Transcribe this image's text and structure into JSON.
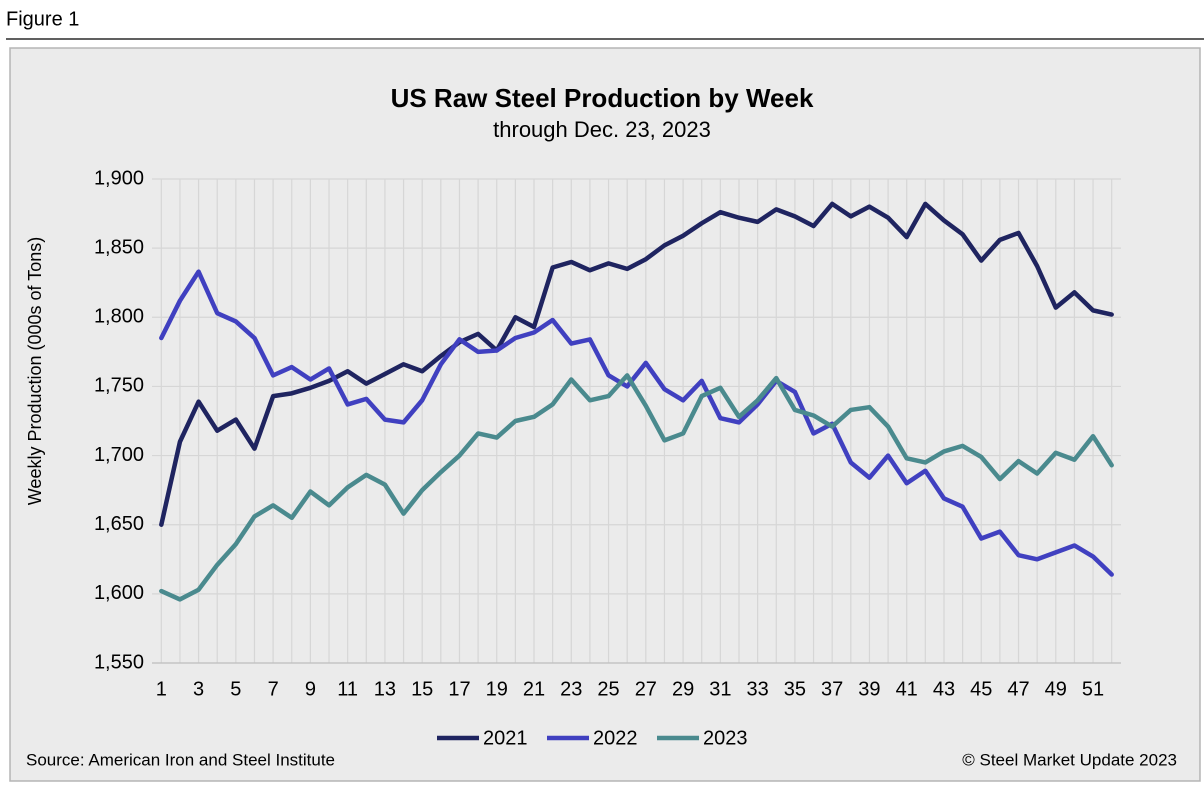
{
  "figure_label": "Figure 1",
  "chart_data": {
    "type": "line",
    "title": "US Raw Steel Production by Week",
    "subtitle": "through Dec. 23, 2023",
    "y_label": "Weekly Production (000s of Tons)",
    "source": "Source: American Iron and Steel Institute",
    "credit": "© Steel Market Update 2023",
    "categories": [
      "1",
      null,
      "3",
      null,
      "5",
      null,
      "7",
      null,
      "9",
      null,
      "11",
      null,
      "13",
      null,
      "15",
      null,
      "17",
      null,
      "19",
      null,
      "21",
      null,
      "23",
      null,
      "25",
      null,
      "27",
      null,
      "29",
      null,
      "31",
      null,
      "33",
      null,
      "35",
      null,
      "37",
      null,
      "39",
      null,
      "41",
      null,
      "43",
      null,
      "45",
      null,
      "47",
      null,
      "49",
      null,
      "51",
      null
    ],
    "series": [
      {
        "name": "2021",
        "color": "#1f2460",
        "values": [
          1650,
          1710,
          1739,
          1718,
          1726,
          1705,
          1743,
          1745,
          1749,
          1754,
          1761,
          1752,
          1759,
          1766,
          1761,
          1772,
          1782,
          1788,
          1776,
          1800,
          1793,
          1836,
          1840,
          1834,
          1839,
          1835,
          1842,
          1852,
          1859,
          1868,
          1876,
          1872,
          1869,
          1878,
          1873,
          1866,
          1882,
          1873,
          1880,
          1872,
          1858,
          1882,
          1870,
          1860,
          1841,
          1856,
          1861,
          1837,
          1807,
          1818,
          1805,
          1802
        ]
      },
      {
        "name": "2022",
        "color": "#4040c0",
        "values": [
          1785,
          1812,
          1833,
          1803,
          1797,
          1785,
          1758,
          1764,
          1755,
          1763,
          1737,
          1741,
          1726,
          1724,
          1740,
          1766,
          1784,
          1775,
          1776,
          1785,
          1789,
          1798,
          1781,
          1784,
          1758,
          1750,
          1767,
          1748,
          1740,
          1754,
          1727,
          1724,
          1737,
          1754,
          1746,
          1716,
          1723,
          1695,
          1684,
          1700,
          1680,
          1689,
          1669,
          1663,
          1640,
          1645,
          1628,
          1625,
          1630,
          1635,
          1627,
          1614
        ]
      },
      {
        "name": "2023",
        "color": "#4a8a8e",
        "values": [
          1602,
          1596,
          1603,
          1621,
          1636,
          1656,
          1664,
          1655,
          1674,
          1664,
          1677,
          1686,
          1679,
          1658,
          1675,
          1688,
          1700,
          1716,
          1713,
          1725,
          1728,
          1737,
          1755,
          1740,
          1743,
          1758,
          1736,
          1711,
          1716,
          1743,
          1749,
          1728,
          1740,
          1756,
          1733,
          1729,
          1721,
          1733,
          1735,
          1721,
          1698,
          1695,
          1703,
          1707,
          1699,
          1683,
          1696,
          1687,
          1702,
          1697,
          1714,
          1693
        ]
      }
    ],
    "ylim": [
      1550,
      1900
    ],
    "yticks": [
      {
        "value": 1550,
        "label": "1,550"
      },
      {
        "value": 1600,
        "label": "1,600"
      },
      {
        "value": 1650,
        "label": "1,650"
      },
      {
        "value": 1700,
        "label": "1,700"
      },
      {
        "value": 1750,
        "label": "1,750"
      },
      {
        "value": 1800,
        "label": "1,800"
      },
      {
        "value": 1850,
        "label": "1,850"
      },
      {
        "value": 1900,
        "label": "1,900"
      }
    ],
    "grid": true,
    "legend": "bottom"
  }
}
